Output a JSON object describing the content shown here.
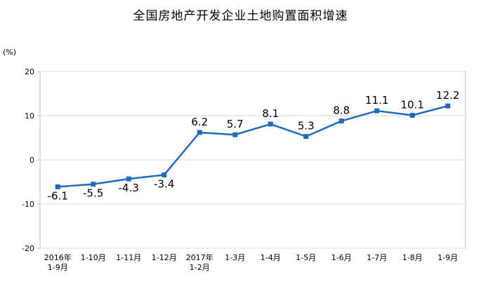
{
  "chart_data": {
    "type": "line",
    "title": "全国房地产开发企业土地购置面积增速",
    "ylabel": "(%)",
    "xlabel": "",
    "ylim": [
      -20,
      20
    ],
    "yticks": [
      20,
      10,
      0,
      -10,
      -20
    ],
    "categories": [
      [
        "2016年",
        "1-9月"
      ],
      [
        "1-10月"
      ],
      [
        "1-11月"
      ],
      [
        "1-12月"
      ],
      [
        "2017年",
        "1-2月"
      ],
      [
        "1-3月"
      ],
      [
        "1-4月"
      ],
      [
        "1-5月"
      ],
      [
        "1-6月"
      ],
      [
        "1-7月"
      ],
      [
        "1-8月"
      ],
      [
        "1-9月"
      ]
    ],
    "series": [
      {
        "values": [
          -6.1,
          -5.5,
          -4.3,
          -3.4,
          6.2,
          5.7,
          8.1,
          5.3,
          8.8,
          11.1,
          10.1,
          12.2
        ],
        "labels": [
          "-6.1",
          "-5.5",
          "-4.3",
          "-3.4",
          "6.2",
          "5.7",
          "8.1",
          "5.3",
          "8.8",
          "11.1",
          "10.1",
          "12.2"
        ],
        "color": "#1f6bc0"
      }
    ],
    "grid": true,
    "legend": "none"
  },
  "colors": {
    "grid": "#d9d9d9",
    "axis": "#bfbfbf",
    "line": "#1f6bc0"
  }
}
